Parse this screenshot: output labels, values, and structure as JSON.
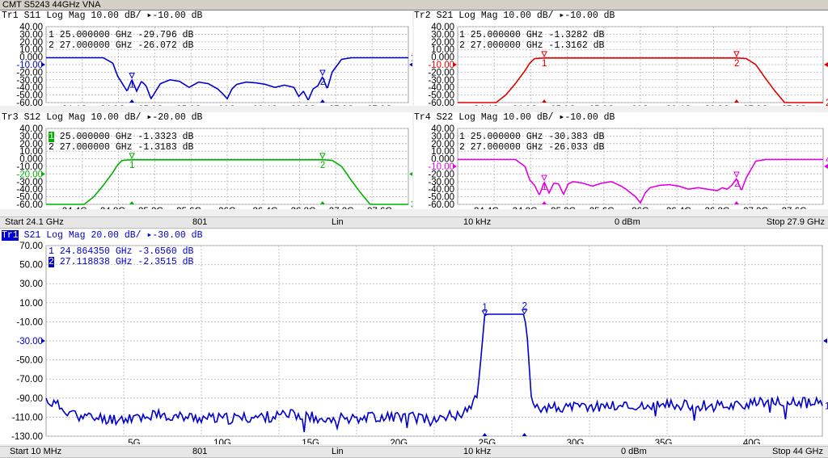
{
  "window": {
    "title": "CMT S5243 44GHz VNA"
  },
  "colors": {
    "tr1": "#0000cc",
    "tr2": "#e00000",
    "tr3": "#00b000",
    "tr4": "#e000e0",
    "grid": "#c0c0c0",
    "bottom": "#0000cc"
  },
  "upper_status": {
    "start": "Start 24.1 GHz",
    "points": "801",
    "sweep": "Lin",
    "ifbw": "10 kHz",
    "power": "0 dBm",
    "stop": "Stop 27.9 GHz"
  },
  "lower_status": {
    "start": "Start 10 MHz",
    "points": "801",
    "sweep": "Lin",
    "ifbw": "10 kHz",
    "power": "0 dBm",
    "stop": "Stop 44 GHz"
  },
  "traces": [
    {
      "id": "Tr1",
      "header": "Tr1 S11 Log Mag 10.00 dB/ ▸-10.00 dB",
      "m1": "1 25.000000 GHz -29.796 dB",
      "m2": "2 27.000000 GHz -26.072 dB",
      "ref": "-10.00",
      "yticks": [
        "40.00",
        "30.00",
        "20.00",
        "10.00",
        "0.000",
        "-10.00",
        "-20.00",
        "-30.00",
        "-40.00",
        "-50.00",
        "-60.00"
      ],
      "xticks": [
        "24.4G",
        "24.8G",
        "25.2G",
        "25.6G",
        "26G",
        "26.4G",
        "26.8G",
        "27.2G",
        "27.6G"
      ],
      "end_label": "1"
    },
    {
      "id": "Tr2",
      "header": "Tr2 S21 Log Mag 10.00 dB/ ▸-10.00 dB",
      "m1": "1 25.000000 GHz -1.3282 dB",
      "m2": "2 27.000000 GHz -1.3162 dB",
      "ref": "-10.00",
      "yticks": [
        "40.00",
        "30.00",
        "20.00",
        "10.00",
        "0.000",
        "-10.00",
        "-20.00",
        "-30.00",
        "-40.00",
        "-50.00",
        "-60.00"
      ],
      "xticks": [
        "24.4G",
        "24.8G",
        "25.2G",
        "25.6G",
        "26G",
        "26.4G",
        "26.8G",
        "27.2G",
        "27.6G"
      ],
      "end_label": "2"
    },
    {
      "id": "Tr3",
      "header": "Tr3 S12 Log Mag 10.00 dB/ ▸-20.00 dB",
      "m1": "1 25.000000 GHz -1.3323 dB",
      "m2": "2 27.000000 GHz -1.3183 dB",
      "ref": "-20.00",
      "yticks": [
        "40.00",
        "30.00",
        "20.00",
        "10.00",
        "0.000",
        "-10.00",
        "-20.00",
        "-30.00",
        "-40.00",
        "-50.00",
        "-60.00"
      ],
      "xticks": [
        "24.4G",
        "24.8G",
        "25.2G",
        "25.6G",
        "26G",
        "26.4G",
        "26.8G",
        "27.2G",
        "27.6G"
      ],
      "end_label": "3"
    },
    {
      "id": "Tr4",
      "header": "Tr4 S22 Log Mag 10.00 dB/ ▸-10.00 dB",
      "m1": "1 25.000000 GHz -30.383 dB",
      "m2": "2 27.000000 GHz -26.033 dB",
      "ref": "-10.00",
      "yticks": [
        "40.00",
        "30.00",
        "20.00",
        "10.00",
        "0.000",
        "-10.00",
        "-20.00",
        "-30.00",
        "-40.00",
        "-50.00",
        "-60.00"
      ],
      "xticks": [
        "24.4G",
        "24.8G",
        "25.2G",
        "25.6G",
        "26G",
        "26.4G",
        "26.8G",
        "27.2G",
        "27.6G"
      ],
      "end_label": "4"
    }
  ],
  "bottom_trace": {
    "id": "Tr1",
    "header_rest": "S21 Log Mag 20.00 dB/ ▸-30.00 dB",
    "m1": "24.864350 GHz -3.6560 dB",
    "m2": "27.118838 GHz -2.3515 dB",
    "m1_num": "1",
    "m2_num": "2",
    "ref": "-30.00",
    "yticks": [
      "70.00",
      "50.00",
      "30.00",
      "10.00",
      "-10.00",
      "-30.00",
      "-50.00",
      "-70.00",
      "-90.00",
      "-110.00",
      "-130.00"
    ],
    "xticks": [
      "5G",
      "10G",
      "15G",
      "20G",
      "25G",
      "30G",
      "35G",
      "40G"
    ],
    "end_label": "1"
  },
  "chart_data": [
    {
      "type": "line",
      "title": "Tr1 S11 Log Mag",
      "x_unit": "GHz",
      "xlim": [
        24.1,
        27.9
      ],
      "ylim": [
        -60,
        40
      ],
      "ylabel": "dB",
      "series": [
        {
          "x": [
            24.1,
            24.7,
            24.8,
            24.85,
            24.9,
            24.95,
            25.0,
            25.05,
            25.1,
            25.15,
            25.2,
            25.3,
            25.4,
            25.5,
            25.6,
            25.7,
            25.8,
            25.9,
            25.95,
            26.0,
            26.05,
            26.1,
            26.2,
            26.3,
            26.4,
            26.5,
            26.6,
            26.7,
            26.75,
            26.8,
            26.85,
            26.9,
            26.95,
            27.0,
            27.05,
            27.1,
            27.2,
            27.3,
            27.9
          ],
          "y": [
            -1,
            -1,
            -8,
            -25,
            -35,
            -45,
            -29.8,
            -45,
            -32,
            -38,
            -55,
            -35,
            -30,
            -32,
            -40,
            -33,
            -35,
            -42,
            -48,
            -55,
            -42,
            -36,
            -33,
            -34,
            -36,
            -40,
            -37,
            -40,
            -52,
            -45,
            -57,
            -42,
            -38,
            -26,
            -42,
            -20,
            -3,
            -1,
            -1
          ]
        }
      ]
    },
    {
      "type": "line",
      "title": "Tr2 S21 Log Mag",
      "x_unit": "GHz",
      "xlim": [
        24.1,
        27.9
      ],
      "ylim": [
        -60,
        40
      ],
      "ylabel": "dB",
      "series": [
        {
          "x": [
            24.1,
            24.5,
            24.6,
            24.7,
            24.8,
            24.85,
            24.9,
            25.0,
            26.0,
            27.0,
            27.1,
            27.2,
            27.3,
            27.4,
            27.5,
            27.9
          ],
          "y": [
            -60,
            -60,
            -50,
            -35,
            -18,
            -8,
            -2,
            -1.33,
            -1.3,
            -1.32,
            -2,
            -10,
            -28,
            -45,
            -60,
            -60
          ]
        }
      ]
    },
    {
      "type": "line",
      "title": "Tr3 S12 Log Mag",
      "x_unit": "GHz",
      "xlim": [
        24.1,
        27.9
      ],
      "ylim": [
        -60,
        40
      ],
      "ylabel": "dB",
      "series": [
        {
          "x": [
            24.1,
            24.5,
            24.6,
            24.7,
            24.8,
            24.85,
            24.9,
            25.0,
            26.0,
            27.0,
            27.1,
            27.2,
            27.3,
            27.4,
            27.5,
            27.9
          ],
          "y": [
            -60,
            -60,
            -50,
            -35,
            -18,
            -8,
            -2,
            -1.33,
            -1.3,
            -1.32,
            -2,
            -10,
            -28,
            -45,
            -60,
            -60
          ]
        }
      ]
    },
    {
      "type": "line",
      "title": "Tr4 S22 Log Mag",
      "x_unit": "GHz",
      "xlim": [
        24.1,
        27.9
      ],
      "ylim": [
        -60,
        40
      ],
      "ylabel": "dB",
      "series": [
        {
          "x": [
            24.1,
            24.7,
            24.8,
            24.85,
            24.9,
            24.95,
            25.0,
            25.05,
            25.1,
            25.15,
            25.2,
            25.25,
            25.3,
            25.4,
            25.5,
            25.6,
            25.7,
            25.8,
            25.85,
            25.9,
            25.95,
            26.0,
            26.05,
            26.1,
            26.2,
            26.3,
            26.4,
            26.5,
            26.6,
            26.7,
            26.8,
            26.85,
            26.9,
            26.95,
            27.0,
            27.05,
            27.1,
            27.2,
            27.3,
            27.9
          ],
          "y": [
            -1,
            -1,
            -10,
            -28,
            -35,
            -48,
            -30.4,
            -45,
            -32,
            -33,
            -47,
            -33,
            -30,
            -32,
            -36,
            -32,
            -30,
            -36,
            -40,
            -45,
            -50,
            -58,
            -45,
            -38,
            -35,
            -34,
            -36,
            -40,
            -38,
            -40,
            -42,
            -38,
            -40,
            -35,
            -26,
            -42,
            -25,
            -3,
            -1,
            -1
          ]
        }
      ]
    },
    {
      "type": "line",
      "title": "Tr1 S21 Log Mag",
      "x_unit": "GHz",
      "xlim": [
        0.01,
        44
      ],
      "ylim": [
        -130,
        70
      ],
      "ylabel": "dB",
      "series": [
        {
          "x": [
            0.01,
            2,
            4,
            6,
            8,
            10,
            12,
            14,
            16,
            18,
            20,
            22,
            23,
            24,
            24.5,
            24.864,
            25,
            26,
            27,
            27.119,
            27.3,
            27.5,
            28,
            30,
            32,
            34,
            36,
            38,
            40,
            42,
            44
          ],
          "y": [
            -92,
            -110,
            -112,
            -108,
            -110,
            -112,
            -110,
            -108,
            -111,
            -110,
            -109,
            -112,
            -108,
            -104,
            -80,
            -3.66,
            -2,
            -2,
            -2,
            -2.35,
            -30,
            -90,
            -100,
            -100,
            -98,
            -99,
            -97,
            -98,
            -96,
            -94,
            -96
          ]
        }
      ]
    }
  ]
}
